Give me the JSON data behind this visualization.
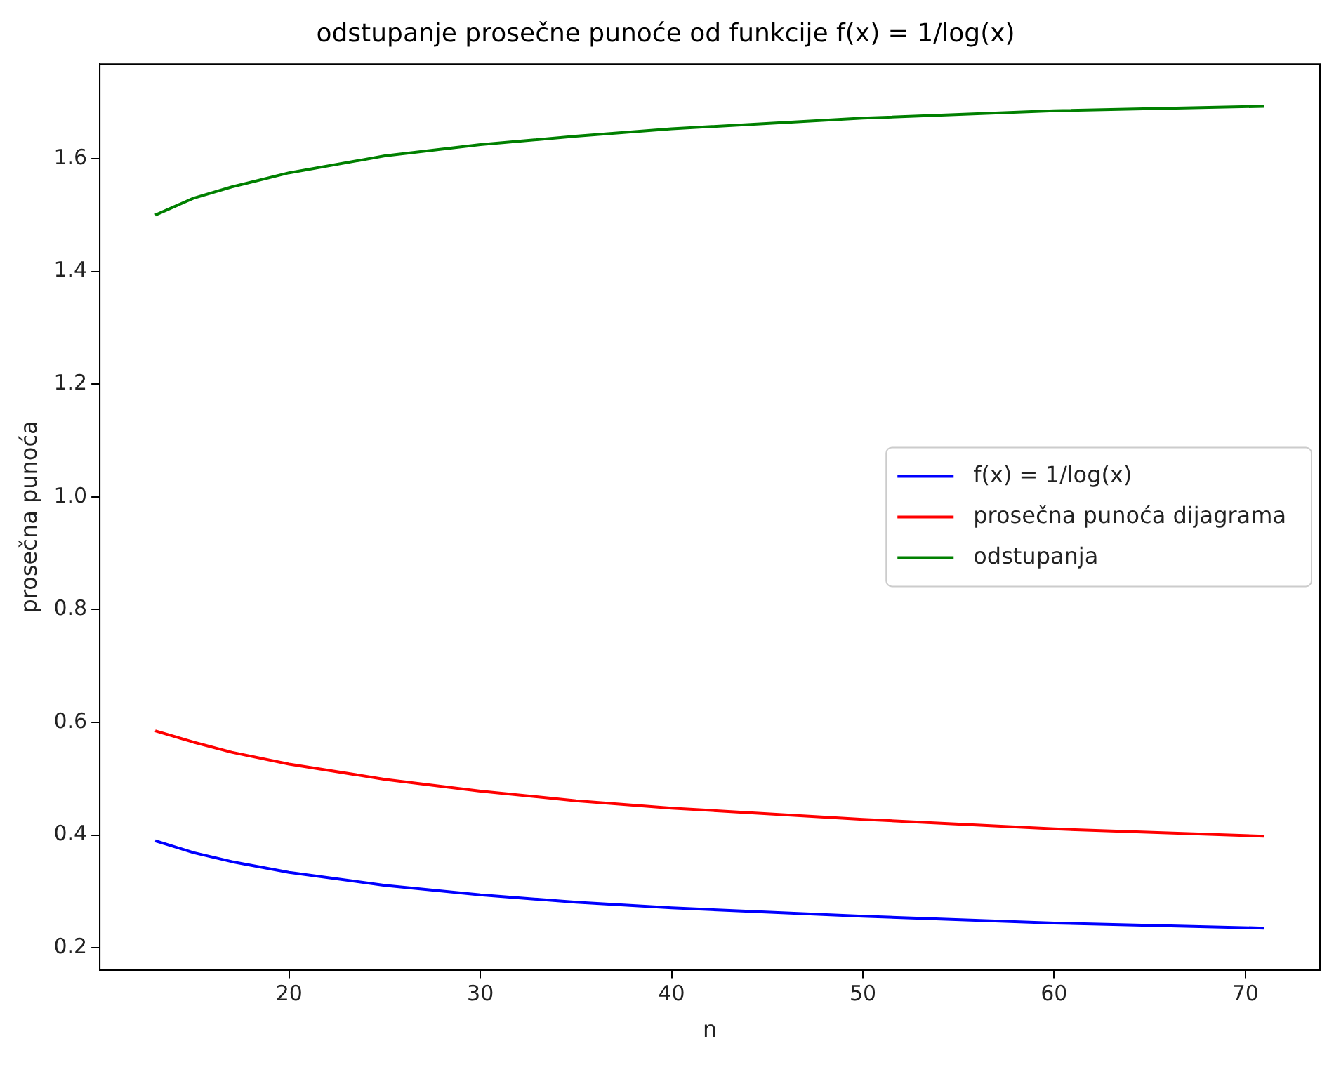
{
  "chart_data": {
    "type": "line",
    "title": "odstupanje prosečne punoće od funkcije f(x) = 1/log(x)",
    "xlabel": "n",
    "ylabel": "prosečna punoća",
    "x": [
      13,
      15,
      17,
      20,
      25,
      30,
      35,
      40,
      50,
      60,
      71
    ],
    "series": [
      {
        "name": "f(x) = 1/log(x)",
        "color": "#0000ff",
        "values": [
          0.39,
          0.369,
          0.353,
          0.334,
          0.311,
          0.294,
          0.281,
          0.271,
          0.256,
          0.244,
          0.235
        ]
      },
      {
        "name": "prosečna punoća dijagrama",
        "color": "#ff0000",
        "values": [
          0.585,
          0.565,
          0.547,
          0.526,
          0.499,
          0.478,
          0.461,
          0.448,
          0.428,
          0.411,
          0.398
        ]
      },
      {
        "name": "odstupanja",
        "color": "#008000",
        "values": [
          1.5,
          1.53,
          1.55,
          1.575,
          1.605,
          1.625,
          1.64,
          1.653,
          1.672,
          1.685,
          1.693
        ]
      }
    ],
    "xlim": [
      10.1,
      73.9
    ],
    "xticks": [
      20,
      30,
      40,
      50,
      60,
      70
    ],
    "ylim": [
      0.161,
      1.768
    ],
    "yticks": [
      0.2,
      0.4,
      0.6,
      0.8,
      {
        "value": 1,
        "label": "1.0"
      },
      1.2,
      1.4,
      1.6
    ],
    "grid": false,
    "legend": "center right",
    "marker": "none",
    "line_style": "solid"
  }
}
